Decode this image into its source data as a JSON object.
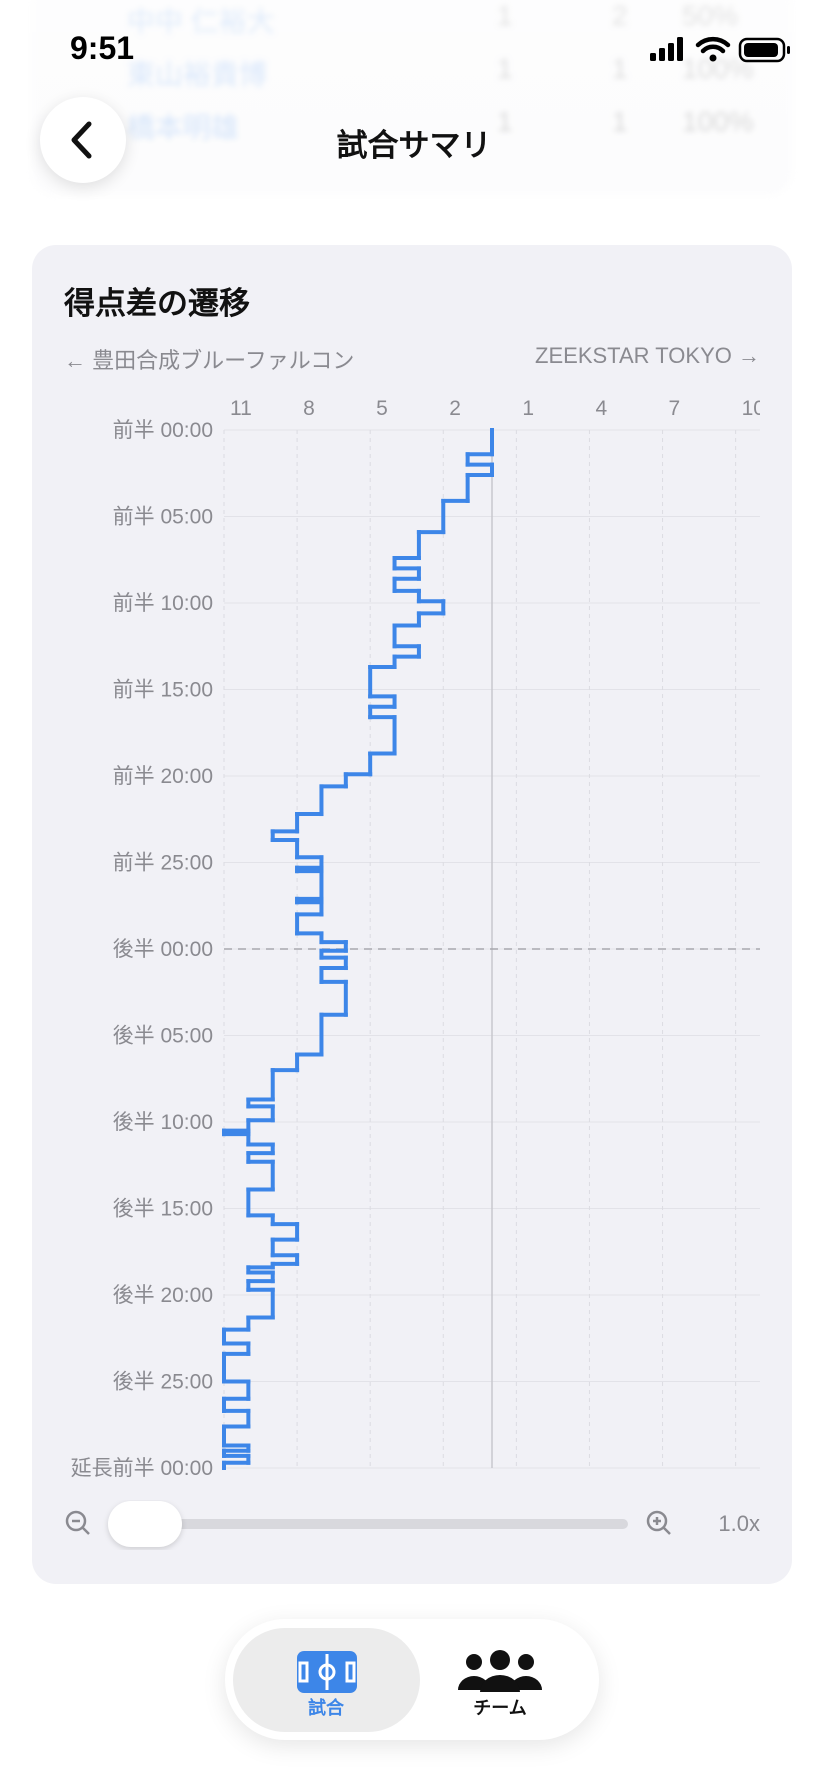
{
  "status_bar": {
    "time": "9:51"
  },
  "background_table": {
    "rows": [
      [
        "中中 仁裕大",
        "1",
        "2",
        "50%"
      ],
      [
        "東山裕貴博",
        "1",
        "1",
        "100%"
      ],
      [
        "橋本明雄",
        "1",
        "1",
        "100%"
      ]
    ]
  },
  "header": {
    "title": "試合サマリ"
  },
  "card": {
    "title": "得点差の遷移",
    "left_team": "← 豊田合成ブルーファルコン",
    "right_team": "ZEEKSTAR TOKYO →"
  },
  "chart_data": {
    "type": "step",
    "color": "#3d86e8",
    "grid": true,
    "x": [
      0,
      1.4,
      2.0,
      2.6,
      4.1,
      5.9,
      7.4,
      8.0,
      8.6,
      9.3,
      9.9,
      10.6,
      11.3,
      12.5,
      13.1,
      13.7,
      15.4,
      16.0,
      16.6,
      18.7,
      19.9,
      20.6,
      22.2,
      23.2,
      23.7,
      24.7,
      25.3,
      25.5,
      27.1,
      27.3,
      28.0,
      29.1,
      29.6,
      30.1,
      30.5,
      31.1,
      31.9,
      33.8,
      36.1,
      37.0,
      38.7,
      39.1,
      39.9,
      40.5,
      40.7,
      41.3,
      41.8,
      42.3,
      43.9,
      45.4,
      45.9,
      46.8,
      47.7,
      48.2,
      48.4,
      48.7,
      49.2,
      49.7,
      51.3,
      52.0,
      52.8,
      53.4,
      55.0,
      56.0,
      56.7,
      57.6,
      58.7,
      59.0,
      59.3,
      59.7
    ],
    "values": [
      0,
      -1,
      0,
      -1,
      -2,
      -3,
      -4,
      -3,
      -4,
      -3,
      -2,
      -3,
      -4,
      -3,
      -4,
      -5,
      -4,
      -5,
      -4,
      -5,
      -6,
      -7,
      -8,
      -9,
      -8,
      -7,
      -8,
      -7,
      -8,
      -7,
      -8,
      -7,
      -6,
      -7,
      -6,
      -7,
      -6,
      -7,
      -8,
      -9,
      -10,
      -9,
      -10,
      -11,
      -10,
      -9,
      -10,
      -9,
      -10,
      -9,
      -8,
      -9,
      -8,
      -9,
      -10,
      -9,
      -10,
      -9,
      -10,
      -11,
      -10,
      -11,
      -10,
      -11,
      -10,
      -11,
      -10,
      -11,
      -10,
      -11
    ],
    "xlim": [
      0,
      60
    ],
    "xticks": [
      {
        "value": 0,
        "label": "前半 00:00"
      },
      {
        "value": 5,
        "label": "前半 05:00"
      },
      {
        "value": 10,
        "label": "前半 10:00"
      },
      {
        "value": 15,
        "label": "前半 15:00"
      },
      {
        "value": 20,
        "label": "前半 20:00"
      },
      {
        "value": 25,
        "label": "前半 25:00"
      },
      {
        "value": 30,
        "label": "後半 00:00"
      },
      {
        "value": 35,
        "label": "後半 05:00"
      },
      {
        "value": 40,
        "label": "後半 10:00"
      },
      {
        "value": 45,
        "label": "後半 15:00"
      },
      {
        "value": 50,
        "label": "後半 20:00"
      },
      {
        "value": 55,
        "label": "後半 25:00"
      },
      {
        "value": 60,
        "label": "延長前半 00:00"
      }
    ],
    "period_breaks": [
      30
    ],
    "ylim": [
      -11,
      11
    ],
    "yticks": [
      {
        "value": -11,
        "label": "11"
      },
      {
        "value": -8,
        "label": "8"
      },
      {
        "value": -5,
        "label": "5"
      },
      {
        "value": -2,
        "label": "2"
      },
      1,
      4,
      7,
      10
    ]
  },
  "zoom": {
    "label": "1.0x"
  },
  "tab_bar": {
    "tabs": [
      {
        "label": "試合"
      },
      {
        "label": "チーム"
      }
    ]
  }
}
